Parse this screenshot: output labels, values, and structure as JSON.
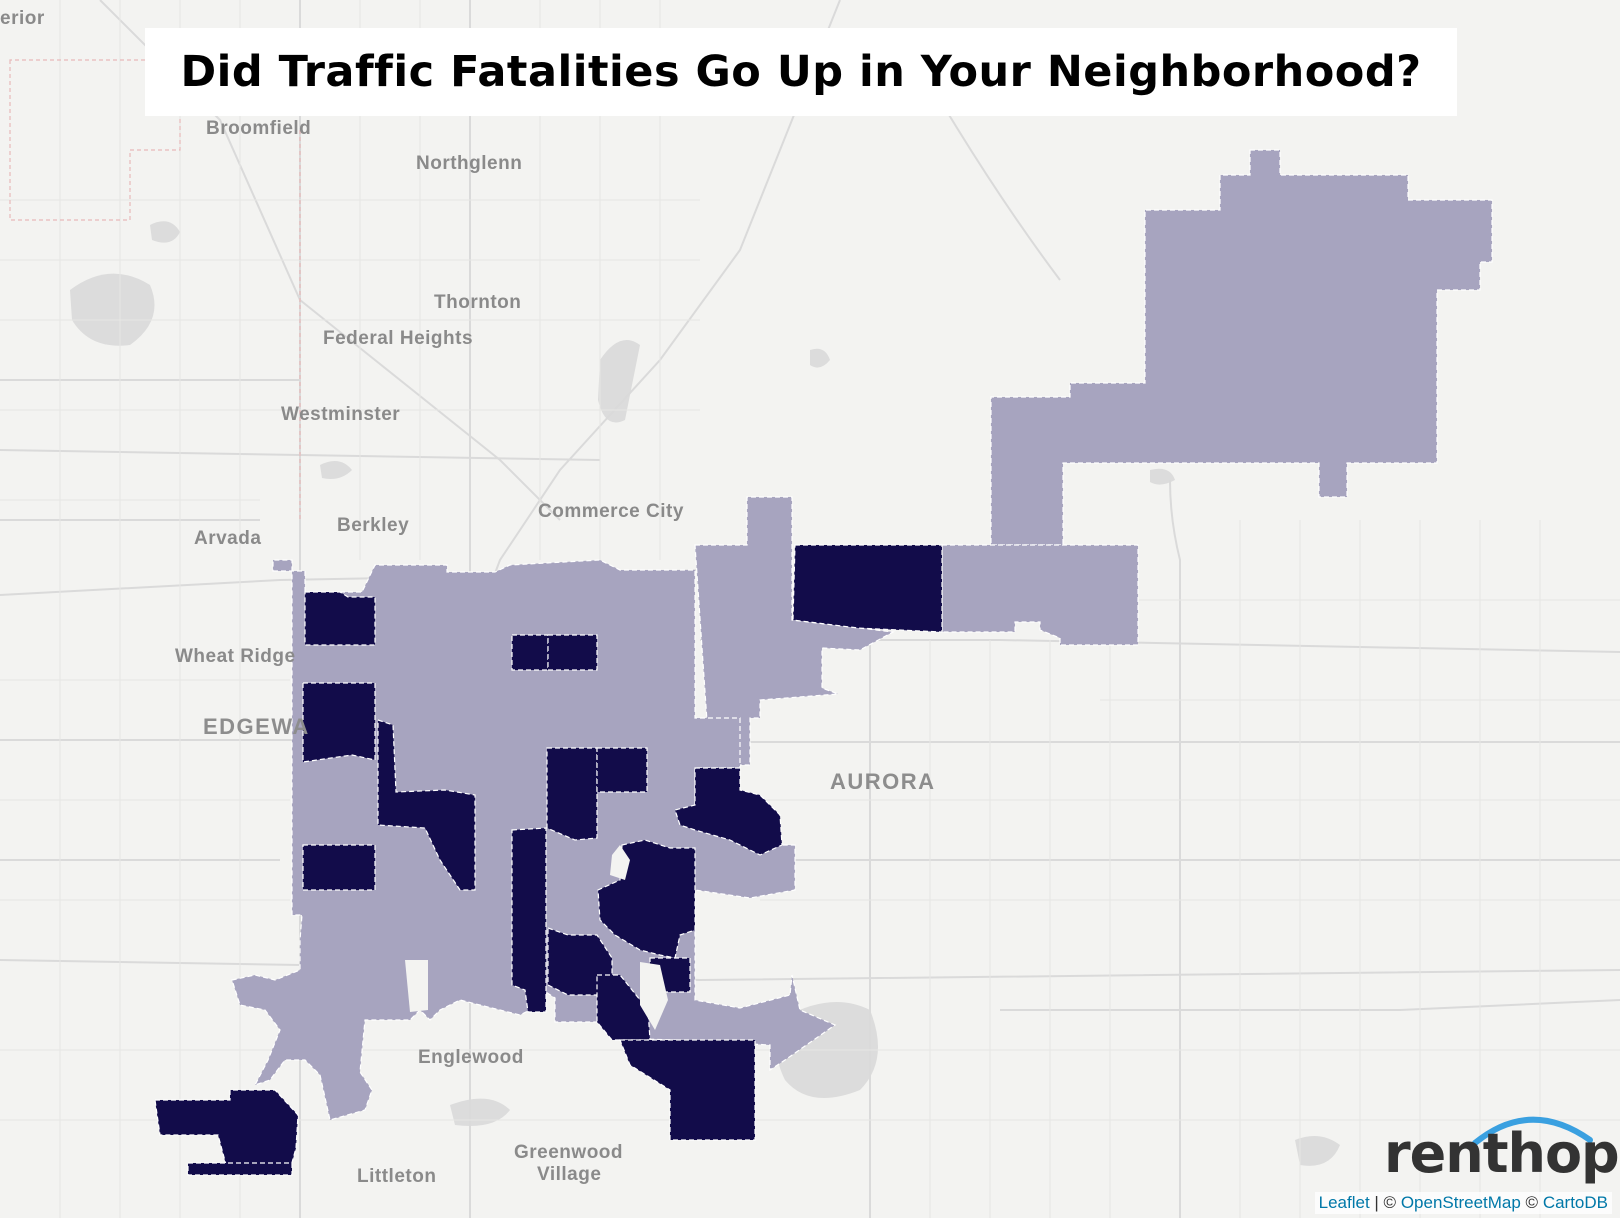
{
  "title": "Did Traffic Fatalities Go Up in Your Neighborhood?",
  "places": {
    "superior": "erior",
    "broomfield": "Broomfield",
    "northglenn": "Northglenn",
    "thornton": "Thornton",
    "federal_heights": "Federal Heights",
    "westminster": "Westminster",
    "commerce_city": "Commerce City",
    "arvada": "Arvada",
    "berkley": "Berkley",
    "wheat_ridge": "Wheat Ridge",
    "edgewater": "EDGEWA",
    "aurora": "AURORA",
    "englewood": "Englewood",
    "greenwood_village_1": "Greenwood",
    "greenwood_village_2": "Village",
    "littleton": "Littleton"
  },
  "legend_colors": {
    "increase": "#120c4a",
    "no_increase": "#a7a4bf",
    "basemap": "#f3f3f1"
  },
  "logo": {
    "text": "renthop",
    "arc_color": "#3aa0e0"
  },
  "attribution": {
    "leaflet": "Leaflet",
    "sep1": " | © ",
    "osm": "OpenStreetMap",
    "sep2": " © ",
    "carto": "CartoDB"
  }
}
